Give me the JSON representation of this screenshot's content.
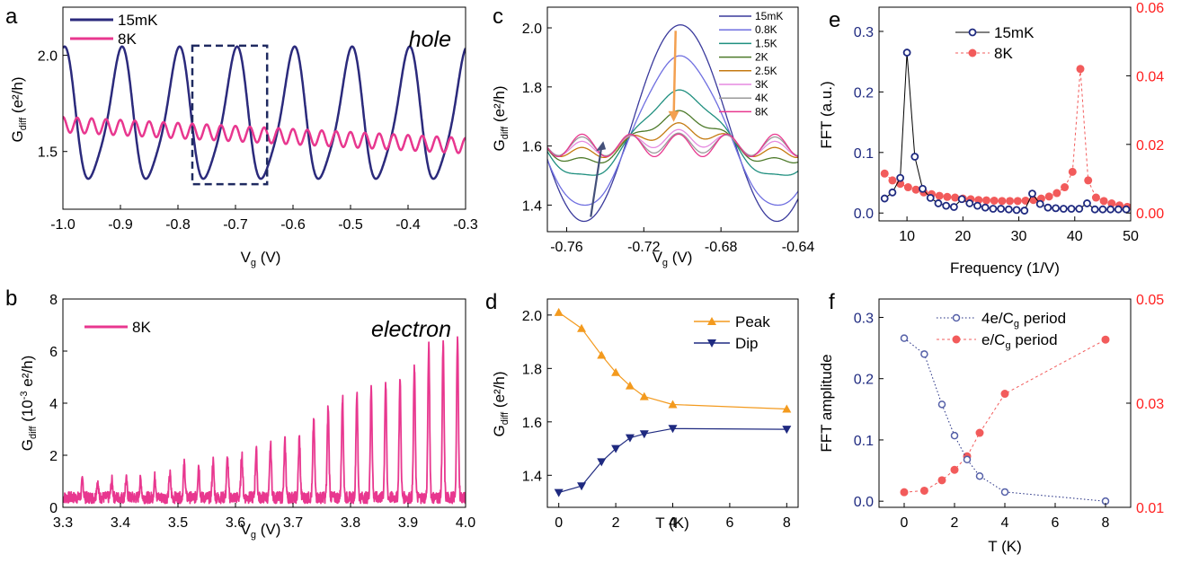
{
  "chart_data": [
    {
      "panel": "a",
      "type": "line",
      "xlabel_main": "V",
      "xlabel_sub": "g",
      "xlabel_unit": " (V)",
      "ylabel_main": "G",
      "ylabel_sub": "diff",
      "ylabel_unit": " (e²/h)",
      "xlim": [
        -1.0,
        -0.3
      ],
      "ylim": [
        1.2,
        2.25
      ],
      "xticks": [
        "-1.0",
        "-0.9",
        "-0.8",
        "-0.7",
        "-0.6",
        "-0.5",
        "-0.4",
        "-0.3"
      ],
      "xtick_values": [
        -1.0,
        -0.9,
        -0.8,
        -0.7,
        -0.6,
        -0.5,
        -0.4,
        -0.3
      ],
      "yticks": [
        "1.5",
        "2.0"
      ],
      "ytick_values": [
        1.5,
        2.0
      ],
      "annotation": "hole",
      "highlight_box_x": [
        -0.775,
        -0.645
      ],
      "highlight_box_y": [
        1.33,
        2.05
      ],
      "series": [
        {
          "name": "15mK",
          "color": "#2b2a7c",
          "period": 0.1,
          "center": 1.67,
          "amplitude": 0.33,
          "phase_peak_x": -0.7
        },
        {
          "name": "8K",
          "color": "#e8378f",
          "period": 0.025,
          "center_start": 1.64,
          "center_end": 1.53,
          "amplitude": 0.04
        }
      ]
    },
    {
      "panel": "b",
      "type": "line",
      "xlabel_main": "V",
      "xlabel_sub": "g",
      "xlabel_unit": " (V)",
      "ylabel_main": "G",
      "ylabel_sub": "diff",
      "ylabel_unit_pre": " (10",
      "ylabel_sup": "-3",
      "ylabel_unit_post": " e²/h)",
      "xlim": [
        3.3,
        4.0
      ],
      "ylim": [
        0,
        8
      ],
      "xticks": [
        "3.3",
        "3.4",
        "3.5",
        "3.6",
        "3.7",
        "3.8",
        "3.9",
        "4.0"
      ],
      "xtick_values": [
        3.3,
        3.4,
        3.5,
        3.6,
        3.7,
        3.8,
        3.9,
        4.0
      ],
      "yticks": [
        "0",
        "2",
        "4",
        "6",
        "8"
      ],
      "ytick_values": [
        0,
        2,
        4,
        6,
        8
      ],
      "annotation": "electron",
      "series": [
        {
          "name": "8K",
          "color": "#e8378f",
          "peak_x": [
            3.334,
            3.36,
            3.385,
            3.41,
            3.435,
            3.46,
            3.486,
            3.511,
            3.536,
            3.561,
            3.586,
            3.611,
            3.636,
            3.661,
            3.686,
            3.711,
            3.736,
            3.761,
            3.786,
            3.811,
            3.836,
            3.861,
            3.886,
            3.911,
            3.936,
            3.961,
            3.986
          ],
          "peak_y": [
            0.95,
            0.9,
            0.95,
            1.0,
            1.0,
            1.1,
            1.2,
            1.6,
            1.55,
            1.7,
            1.8,
            2.0,
            2.15,
            2.3,
            2.45,
            2.6,
            3.3,
            3.75,
            4.2,
            4.3,
            4.5,
            4.7,
            4.8,
            5.3,
            6.1,
            6.2,
            6.4
          ]
        }
      ]
    },
    {
      "panel": "c",
      "type": "line",
      "xlabel_main": "V",
      "xlabel_sub": "g",
      "xlabel_unit": " (V)",
      "ylabel_main": "G",
      "ylabel_sub": "diff",
      "ylabel_unit": " (e²/h)",
      "xlim": [
        -0.77,
        -0.64
      ],
      "ylim": [
        1.31,
        2.07
      ],
      "xticks": [
        "-0.76",
        "-0.72",
        "-0.68",
        "-0.64"
      ],
      "xtick_values": [
        -0.76,
        -0.72,
        -0.68,
        -0.64
      ],
      "yticks": [
        "1.4",
        "1.6",
        "1.8",
        "2.0"
      ],
      "ytick_values": [
        1.4,
        1.6,
        1.8,
        2.0
      ],
      "series": [
        {
          "name": "15mK",
          "color": "#3a3a9c",
          "peak": 2.01,
          "dip": 1.345
        },
        {
          "name": "0.8K",
          "color": "#6f6fe0",
          "peak": 1.95,
          "dip": 1.36
        },
        {
          "name": "1.5K",
          "color": "#1f8f7f",
          "peak": 1.85,
          "dip": 1.45
        },
        {
          "name": "2K",
          "color": "#4d7a2a",
          "peak": 1.78,
          "dip": 1.5
        },
        {
          "name": "2.5K",
          "color": "#c47a10",
          "peak": 1.73,
          "dip": 1.535
        },
        {
          "name": "3K",
          "color": "#e68ae0",
          "peak": 1.695,
          "dip": 1.555
        },
        {
          "name": "4K",
          "color": "#9a9a9a",
          "peak": 1.665,
          "dip": 1.575
        },
        {
          "name": "8K",
          "color": "#e8378f",
          "peak": 1.645,
          "dip": 1.57
        }
      ]
    },
    {
      "panel": "d",
      "type": "line",
      "xlabel": "T (K)",
      "ylabel_main": "G",
      "ylabel_sub": "diff",
      "ylabel_unit": " (e²/h)",
      "xlim": [
        -0.4,
        8.4
      ],
      "ylim": [
        1.28,
        2.06
      ],
      "xticks": [
        "0",
        "2",
        "4",
        "6",
        "8"
      ],
      "xtick_values": [
        0,
        2,
        4,
        6,
        8
      ],
      "yticks": [
        "1.4",
        "1.6",
        "1.8",
        "2.0"
      ],
      "ytick_values": [
        1.4,
        1.6,
        1.8,
        2.0
      ],
      "x": [
        0,
        0.8,
        1.5,
        2,
        2.5,
        3,
        4,
        8
      ],
      "series": [
        {
          "name": "Peak",
          "color": "#f39a1e",
          "marker": "triangle-up",
          "values": [
            2.01,
            1.95,
            1.85,
            1.785,
            1.735,
            1.695,
            1.665,
            1.648
          ]
        },
        {
          "name": "Dip",
          "color": "#1f2a80",
          "marker": "triangle-down",
          "values": [
            1.335,
            1.36,
            1.45,
            1.5,
            1.54,
            1.555,
            1.575,
            1.572
          ]
        }
      ]
    },
    {
      "panel": "e",
      "type": "scatter",
      "xlabel": "Frequency (1/V)",
      "ylabel": "FFT (a.u.)",
      "xlim": [
        5,
        50
      ],
      "ylim": [
        -0.013,
        0.34
      ],
      "y2lim": [
        -0.0023,
        0.06
      ],
      "xticks": [
        "10",
        "20",
        "30",
        "40",
        "50"
      ],
      "xtick_values": [
        10,
        20,
        30,
        40,
        50
      ],
      "yticks": [
        "0.0",
        "0.1",
        "0.2",
        "0.3"
      ],
      "ytick_values": [
        0.0,
        0.1,
        0.2,
        0.3
      ],
      "y2ticks": [
        "0.00",
        "0.02",
        "0.04",
        "0.06"
      ],
      "y2tick_values": [
        0.0,
        0.02,
        0.04,
        0.06
      ],
      "series": [
        {
          "name": "15mK",
          "color": "#1f2a80",
          "marker": "open-circle",
          "axis": "left",
          "x": [
            6,
            7.4,
            8.8,
            10,
            11.4,
            12.8,
            14.2,
            15.6,
            17,
            18.4,
            19.8,
            21.2,
            22.6,
            24,
            25.4,
            26.8,
            28.2,
            29.6,
            31,
            32.4,
            33.8,
            35.2,
            36.6,
            38,
            39.4,
            40.8,
            42.2,
            43.6,
            45,
            46.4,
            47.8,
            49.2
          ],
          "values": [
            0.024,
            0.034,
            0.058,
            0.265,
            0.093,
            0.04,
            0.025,
            0.016,
            0.012,
            0.01,
            0.023,
            0.016,
            0.012,
            0.009,
            0.007,
            0.007,
            0.006,
            0.005,
            0.004,
            0.032,
            0.015,
            0.009,
            0.008,
            0.007,
            0.007,
            0.007,
            0.016,
            0.006,
            0.006,
            0.006,
            0.006,
            0.006
          ]
        },
        {
          "name": "8K",
          "color": "#f25b5b",
          "marker": "filled-circle",
          "axis": "right",
          "linestyle": "dashed",
          "x": [
            6,
            7.4,
            8.8,
            10.2,
            11.6,
            13,
            14.4,
            15.8,
            17.2,
            18.6,
            20,
            21.4,
            22.8,
            24.2,
            25.6,
            27,
            28.4,
            29.8,
            31.2,
            32.6,
            34,
            35.4,
            36.8,
            38.2,
            39.6,
            41,
            42.4,
            43.8,
            45.2,
            46.6,
            48,
            49.4
          ],
          "values": [
            0.0115,
            0.0095,
            0.0085,
            0.0075,
            0.0068,
            0.006,
            0.0055,
            0.005,
            0.0047,
            0.0045,
            0.0042,
            0.004,
            0.0038,
            0.0037,
            0.0036,
            0.0035,
            0.0035,
            0.0035,
            0.0036,
            0.0038,
            0.0042,
            0.0048,
            0.0058,
            0.0075,
            0.012,
            0.042,
            0.0095,
            0.0045,
            0.0035,
            0.0028,
            0.0022,
            0.0018
          ]
        }
      ]
    },
    {
      "panel": "f",
      "type": "scatter",
      "xlabel": "T (K)",
      "ylabel": "FFT amplitude",
      "xlim": [
        -1,
        9
      ],
      "ylim": [
        -0.01,
        0.33
      ],
      "y2lim": [
        0.01,
        0.05
      ],
      "xticks": [
        "0",
        "2",
        "4",
        "6",
        "8"
      ],
      "xtick_values": [
        0,
        2,
        4,
        6,
        8
      ],
      "yticks": [
        "0.0",
        "0.1",
        "0.2",
        "0.3"
      ],
      "ytick_values": [
        0.0,
        0.1,
        0.2,
        0.3
      ],
      "y2ticks": [
        "0.01",
        "0.03",
        "0.05"
      ],
      "y2tick_values": [
        0.01,
        0.03,
        0.05
      ],
      "x": [
        0,
        0.8,
        1.5,
        2,
        2.5,
        3,
        4,
        8
      ],
      "series": [
        {
          "name_pre": "4e/C",
          "name_sub": "g",
          "name_post": " period",
          "color": "#1f2a80",
          "marker": "open-circle",
          "axis": "left",
          "linestyle": "dotted",
          "values": [
            0.266,
            0.24,
            0.158,
            0.107,
            0.068,
            0.041,
            0.015,
            0.0
          ]
        },
        {
          "name_pre": "e/C",
          "name_sub": "g",
          "name_post": " period",
          "color": "#f25b5b",
          "marker": "filled-circle",
          "axis": "right",
          "linestyle": "dashed",
          "values": [
            0.0129,
            0.0132,
            0.0152,
            0.0172,
            0.0198,
            0.0243,
            0.0318,
            0.0422
          ]
        }
      ]
    }
  ],
  "panel_labels": [
    "a",
    "b",
    "c",
    "d",
    "e",
    "f"
  ],
  "colors": {
    "left_axis_e_f": "#1f2a80",
    "right_axis_e_f": "#ff2020"
  }
}
